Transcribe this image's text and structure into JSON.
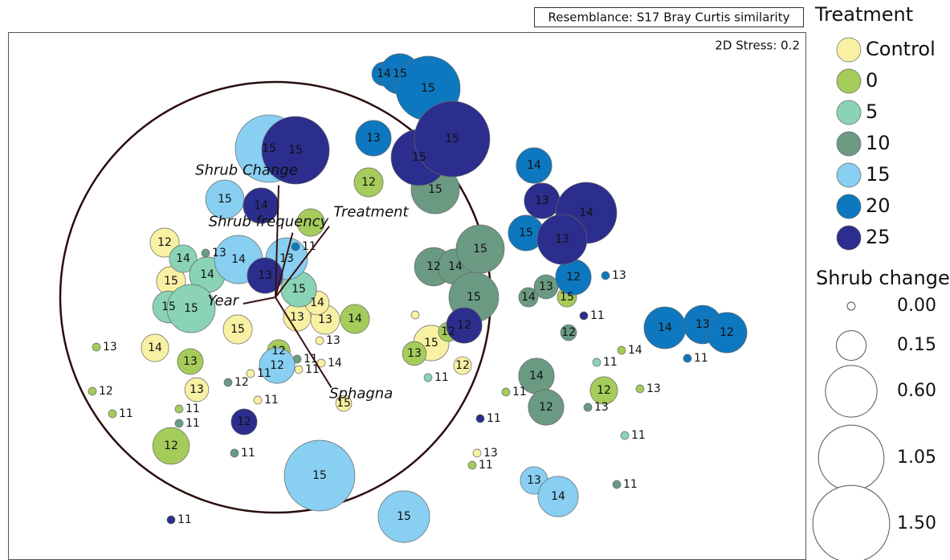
{
  "chart_data": {
    "type": "bubble",
    "annotations": [
      "Resemblance: S17 Bray Curtis similarity",
      "2D Stress: 0.2"
    ],
    "xlim": [
      0,
      993
    ],
    "ylim": [
      0,
      657
    ],
    "legend_title": "Treatment",
    "series": [
      {
        "name": "Control",
        "color": "#f8f1a3",
        "x": [
          195,
          203,
          183,
          286,
          235,
          360,
          395,
          385,
          527,
          566,
          302,
          311,
          362,
          390,
          388,
          507,
          584,
          418
        ],
        "y": [
          395,
          347,
          264,
          287,
          212,
          302,
          299,
          320,
          270,
          242,
          232,
          199,
          237,
          245,
          273,
          305,
          133,
          195
        ],
        "size": [
          0.14,
          0.14,
          0.12,
          0.14,
          0.08,
          0.12,
          0.14,
          0.08,
          0.24,
          0.03,
          0,
          0,
          0,
          0,
          0,
          0,
          0,
          0.02
        ],
        "labels": [
          12,
          15,
          14,
          15,
          13,
          13,
          13,
          14,
          15,
          12,
          11,
          11,
          11,
          14,
          13,
          null,
          13,
          15
        ]
      },
      {
        "name": "0",
        "color": "#a5cc5b",
        "x": [
          449,
          377,
          432,
          227,
          337,
          506,
          548,
          203,
          696,
          742,
          110,
          105,
          130,
          213,
          620,
          764,
          787,
          578
        ],
        "y": [
          470,
          420,
          300,
          247,
          260,
          257,
          284,
          142,
          327,
          211,
          265,
          210,
          182,
          188,
          209,
          261,
          213,
          118
        ],
        "size": [
          0.14,
          0.12,
          0.14,
          0.1,
          0.07,
          0.08,
          0.04,
          0.26,
          0.04,
          0.12,
          0,
          0,
          0,
          0,
          0,
          0,
          0,
          0
        ],
        "labels": [
          12,
          null,
          14,
          13,
          12,
          13,
          12,
          12,
          15,
          12,
          13,
          12,
          11,
          11,
          11,
          14,
          13,
          11
        ]
      },
      {
        "name": "5",
        "color": "#8ad3b5",
        "x": [
          218,
          248,
          200,
          228,
          362,
          523,
          733,
          768
        ],
        "y": [
          375,
          355,
          315,
          313,
          337,
          227,
          246,
          155
        ],
        "size": [
          0.12,
          0.24,
          0.18,
          0.51,
          0.24,
          0,
          0,
          0
        ],
        "labels": [
          14,
          14,
          15,
          15,
          15,
          11,
          11,
          11
        ]
      },
      {
        "name": "10",
        "color": "#6b9a83",
        "x": [
          532,
          530,
          557,
          588,
          580,
          648,
          670,
          658,
          670,
          698,
          246,
          274,
          282,
          213,
          360,
          722,
          758
        ],
        "y": [
          461,
          365,
          365,
          387,
          327,
          327,
          340,
          229,
          190,
          283,
          382,
          221,
          133,
          170,
          250,
          190,
          94
        ],
        "size": [
          0.51,
          0.29,
          0.24,
          0.51,
          0.55,
          0.04,
          0.08,
          0.24,
          0.24,
          0.02,
          0,
          0,
          0,
          0,
          0,
          0,
          0
        ],
        "labels": [
          15,
          12,
          14,
          15,
          15,
          14,
          13,
          14,
          12,
          12,
          13,
          12,
          11,
          11,
          11,
          13,
          11
        ]
      },
      {
        "name": "15",
        "color": "#88cff2",
        "x": [
          325,
          270,
          287,
          347,
          335,
          388,
          493,
          655,
          685
        ],
        "y": [
          512,
          449,
          374,
          375,
          242,
          105,
          54,
          99,
          79
        ],
        "size": [
          1.12,
          0.29,
          0.51,
          0.36,
          0.24,
          1.24,
          0.6,
          0.12,
          0.33
        ],
        "labels": [
          15,
          15,
          14,
          13,
          12,
          15,
          15,
          13,
          14
        ]
      },
      {
        "name": "20",
        "color": "#0d78bf",
        "x": [
          455,
          468,
          488,
          523,
          655,
          645,
          704,
          818,
          865,
          895,
          358,
          744,
          846
        ],
        "y": [
          525,
          605,
          605,
          587,
          491,
          407,
          352,
          289,
          293,
          283,
          390,
          354,
          251
        ],
        "size": [
          0.24,
          0.08,
          0.33,
          1.0,
          0.24,
          0.24,
          0.24,
          0.36,
          0.29,
          0.33,
          0,
          0,
          0
        ],
        "labels": [
          13,
          14,
          15,
          15,
          14,
          15,
          12,
          14,
          13,
          12,
          11,
          13,
          11
        ]
      },
      {
        "name": "25",
        "color": "#2b2e8d",
        "x": [
          358,
          315,
          512,
          553,
          665,
          720,
          690,
          320,
          568,
          294,
          588,
          717,
          203
        ],
        "y": [
          510,
          441,
          501,
          524,
          447,
          432,
          399,
          354,
          292,
          172,
          176,
          304,
          50
        ],
        "size": [
          1.12,
          0.24,
          0.73,
          1.44,
          0.24,
          0.89,
          0.55,
          0.24,
          0.24,
          0.1,
          0,
          0,
          0
        ],
        "labels": [
          15,
          14,
          15,
          15,
          13,
          14,
          13,
          13,
          12,
          12,
          11,
          11,
          11
        ]
      }
    ],
    "size_legend": {
      "title": "Shrub change",
      "values": [
        {
          "value": 0,
          "label": "0.00"
        },
        {
          "value": 0.15,
          "label": "0.15"
        },
        {
          "value": 0.6,
          "label": "0.60"
        },
        {
          "value": 1.05,
          "label": "1.05"
        },
        {
          "value": 1.5,
          "label": "1.50"
        }
      ]
    },
    "vectors": [
      {
        "name": "Shrub Change",
        "x": 0.015,
        "y": 0.52
      },
      {
        "name": "Shrub frequency",
        "x": 0.08,
        "y": 0.3
      },
      {
        "name": "Treatment",
        "x": 0.25,
        "y": 0.33
      },
      {
        "name": "Year",
        "x": -0.15,
        "y": -0.03
      },
      {
        "name": "Sphagna",
        "x": 0.26,
        "y": -0.42
      }
    ]
  }
}
